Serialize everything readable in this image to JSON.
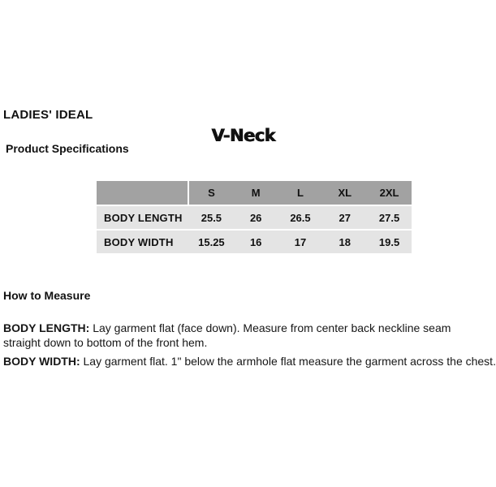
{
  "header": {
    "brand": "LADIES' IDEAL",
    "product_name": "V-Neck",
    "section_title": "Product Specifications"
  },
  "spec_table": {
    "size_columns": [
      "S",
      "M",
      "L",
      "XL",
      "2XL"
    ],
    "rows": [
      {
        "label": "BODY LENGTH",
        "values": [
          "25.5",
          "26",
          "26.5",
          "27",
          "27.5"
        ]
      },
      {
        "label": "BODY WIDTH",
        "values": [
          "15.25",
          "16",
          "17",
          "18",
          "19.5"
        ]
      }
    ],
    "header_bg": "#a2a2a2",
    "row_bg": "#e4e4e4"
  },
  "how_to_measure": {
    "title": "How to Measure",
    "instructions": [
      {
        "label": "BODY LENGTH:",
        "text": "Lay garment flat (face down). Measure from center back neckline seam straight down to bottom of the front hem."
      },
      {
        "label": "BODY WIDTH:",
        "text": "Lay garment flat. 1\" below the armhole flat measure the garment across the chest."
      }
    ]
  }
}
